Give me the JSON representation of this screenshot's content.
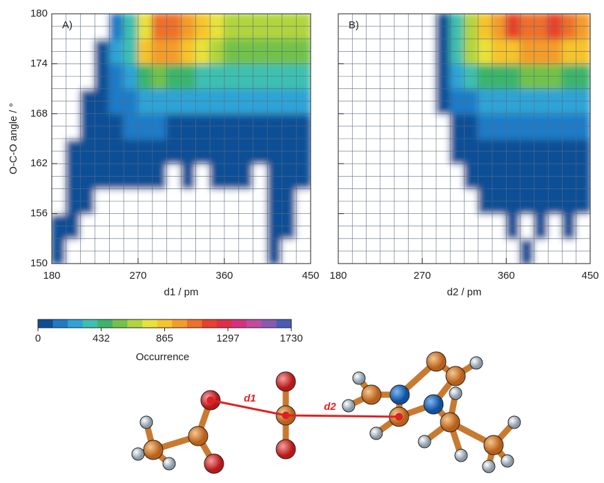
{
  "chart_data": [
    {
      "type": "heatmap",
      "panel_label": "A)",
      "xlabel": "d1 / pm",
      "ylabel": "O-C-O angle / °",
      "xlim": [
        180,
        450
      ],
      "xticks": [
        180,
        270,
        360,
        450
      ],
      "ylim": [
        150,
        180
      ],
      "yticks": [
        150,
        156,
        162,
        168,
        174,
        180
      ],
      "x_minor_divisions": 6,
      "y_minor_divisions": 4,
      "grid": true,
      "z": [
        [
          15,
          0,
          0,
          0,
          0,
          0,
          0,
          0,
          0,
          0,
          0,
          0,
          0,
          0,
          0,
          10,
          0,
          0
        ],
        [
          20,
          20,
          0,
          0,
          0,
          0,
          0,
          0,
          0,
          0,
          0,
          0,
          0,
          0,
          0,
          15,
          15,
          0
        ],
        [
          0,
          30,
          30,
          0,
          0,
          0,
          0,
          0,
          0,
          0,
          0,
          0,
          0,
          0,
          0,
          20,
          20,
          0
        ],
        [
          0,
          30,
          40,
          30,
          30,
          30,
          20,
          20,
          0,
          20,
          0,
          20,
          20,
          20,
          0,
          20,
          30,
          20
        ],
        [
          0,
          20,
          50,
          70,
          60,
          60,
          50,
          40,
          40,
          40,
          40,
          50,
          40,
          40,
          40,
          40,
          40,
          30
        ],
        [
          0,
          0,
          50,
          70,
          100,
          120,
          120,
          110,
          100,
          100,
          100,
          100,
          100,
          100,
          100,
          100,
          80,
          60
        ],
        [
          0,
          0,
          50,
          80,
          150,
          200,
          250,
          250,
          250,
          230,
          220,
          220,
          220,
          220,
          220,
          220,
          220,
          220
        ],
        [
          0,
          0,
          0,
          80,
          200,
          300,
          500,
          550,
          500,
          450,
          400,
          400,
          380,
          380,
          350,
          350,
          380,
          380
        ],
        [
          0,
          0,
          0,
          100,
          250,
          400,
          850,
          1000,
          950,
          850,
          750,
          650,
          600,
          600,
          550,
          550,
          600,
          600
        ],
        [
          0,
          0,
          0,
          0,
          200,
          400,
          800,
          1100,
          1100,
          1000,
          900,
          800,
          700,
          700,
          650,
          650,
          700,
          700
        ]
      ]
    },
    {
      "type": "heatmap",
      "panel_label": "B)",
      "xlabel": "d2 / pm",
      "xlim": [
        180,
        450
      ],
      "xticks": [
        180,
        270,
        360,
        450
      ],
      "ylim": [
        150,
        180
      ],
      "x_minor_divisions": 6,
      "y_minor_divisions": 4,
      "grid": true,
      "z": [
        [
          0,
          0,
          0,
          0,
          0,
          0,
          0,
          0,
          0,
          0,
          0,
          0,
          0,
          15,
          0,
          0,
          0,
          0
        ],
        [
          0,
          0,
          0,
          0,
          0,
          0,
          0,
          0,
          0,
          0,
          0,
          0,
          20,
          0,
          20,
          0,
          20,
          0
        ],
        [
          0,
          0,
          0,
          0,
          0,
          0,
          0,
          0,
          0,
          0,
          30,
          30,
          30,
          30,
          30,
          30,
          30,
          20
        ],
        [
          0,
          0,
          0,
          0,
          0,
          0,
          0,
          0,
          0,
          40,
          50,
          50,
          50,
          50,
          50,
          50,
          40,
          40
        ],
        [
          0,
          0,
          0,
          0,
          0,
          0,
          0,
          0,
          40,
          60,
          70,
          70,
          70,
          70,
          70,
          70,
          70,
          70
        ],
        [
          0,
          0,
          0,
          0,
          0,
          0,
          0,
          0,
          80,
          100,
          120,
          120,
          120,
          120,
          110,
          110,
          110,
          110
        ],
        [
          0,
          0,
          0,
          0,
          0,
          0,
          0,
          50,
          150,
          200,
          250,
          250,
          280,
          280,
          280,
          280,
          280,
          280
        ],
        [
          0,
          0,
          0,
          0,
          0,
          0,
          0,
          60,
          250,
          400,
          450,
          500,
          500,
          550,
          550,
          550,
          500,
          500
        ],
        [
          0,
          0,
          0,
          0,
          0,
          0,
          0,
          80,
          350,
          650,
          800,
          850,
          900,
          950,
          950,
          950,
          900,
          850
        ],
        [
          0,
          0,
          0,
          0,
          0,
          0,
          0,
          80,
          400,
          700,
          900,
          1000,
          1200,
          1100,
          1100,
          1200,
          1100,
          1000
        ]
      ]
    },
    {
      "type": "colorbar",
      "label": "Occurrence",
      "clim": [
        0,
        1730
      ],
      "ticks": [
        0,
        432,
        865,
        1297,
        1730
      ],
      "colors": [
        "#0d4f96",
        "#1f7bc8",
        "#2ea3d6",
        "#3cc0b0",
        "#3bb56a",
        "#72c24a",
        "#b0d43e",
        "#e8e23a",
        "#f6c42c",
        "#f49c2a",
        "#ee702a",
        "#e8402a",
        "#e02f48",
        "#d6307e",
        "#c24aa2",
        "#8858b2",
        "#4a5cb8"
      ]
    }
  ],
  "molecule": {
    "labels": [
      "d1",
      "d2"
    ]
  }
}
